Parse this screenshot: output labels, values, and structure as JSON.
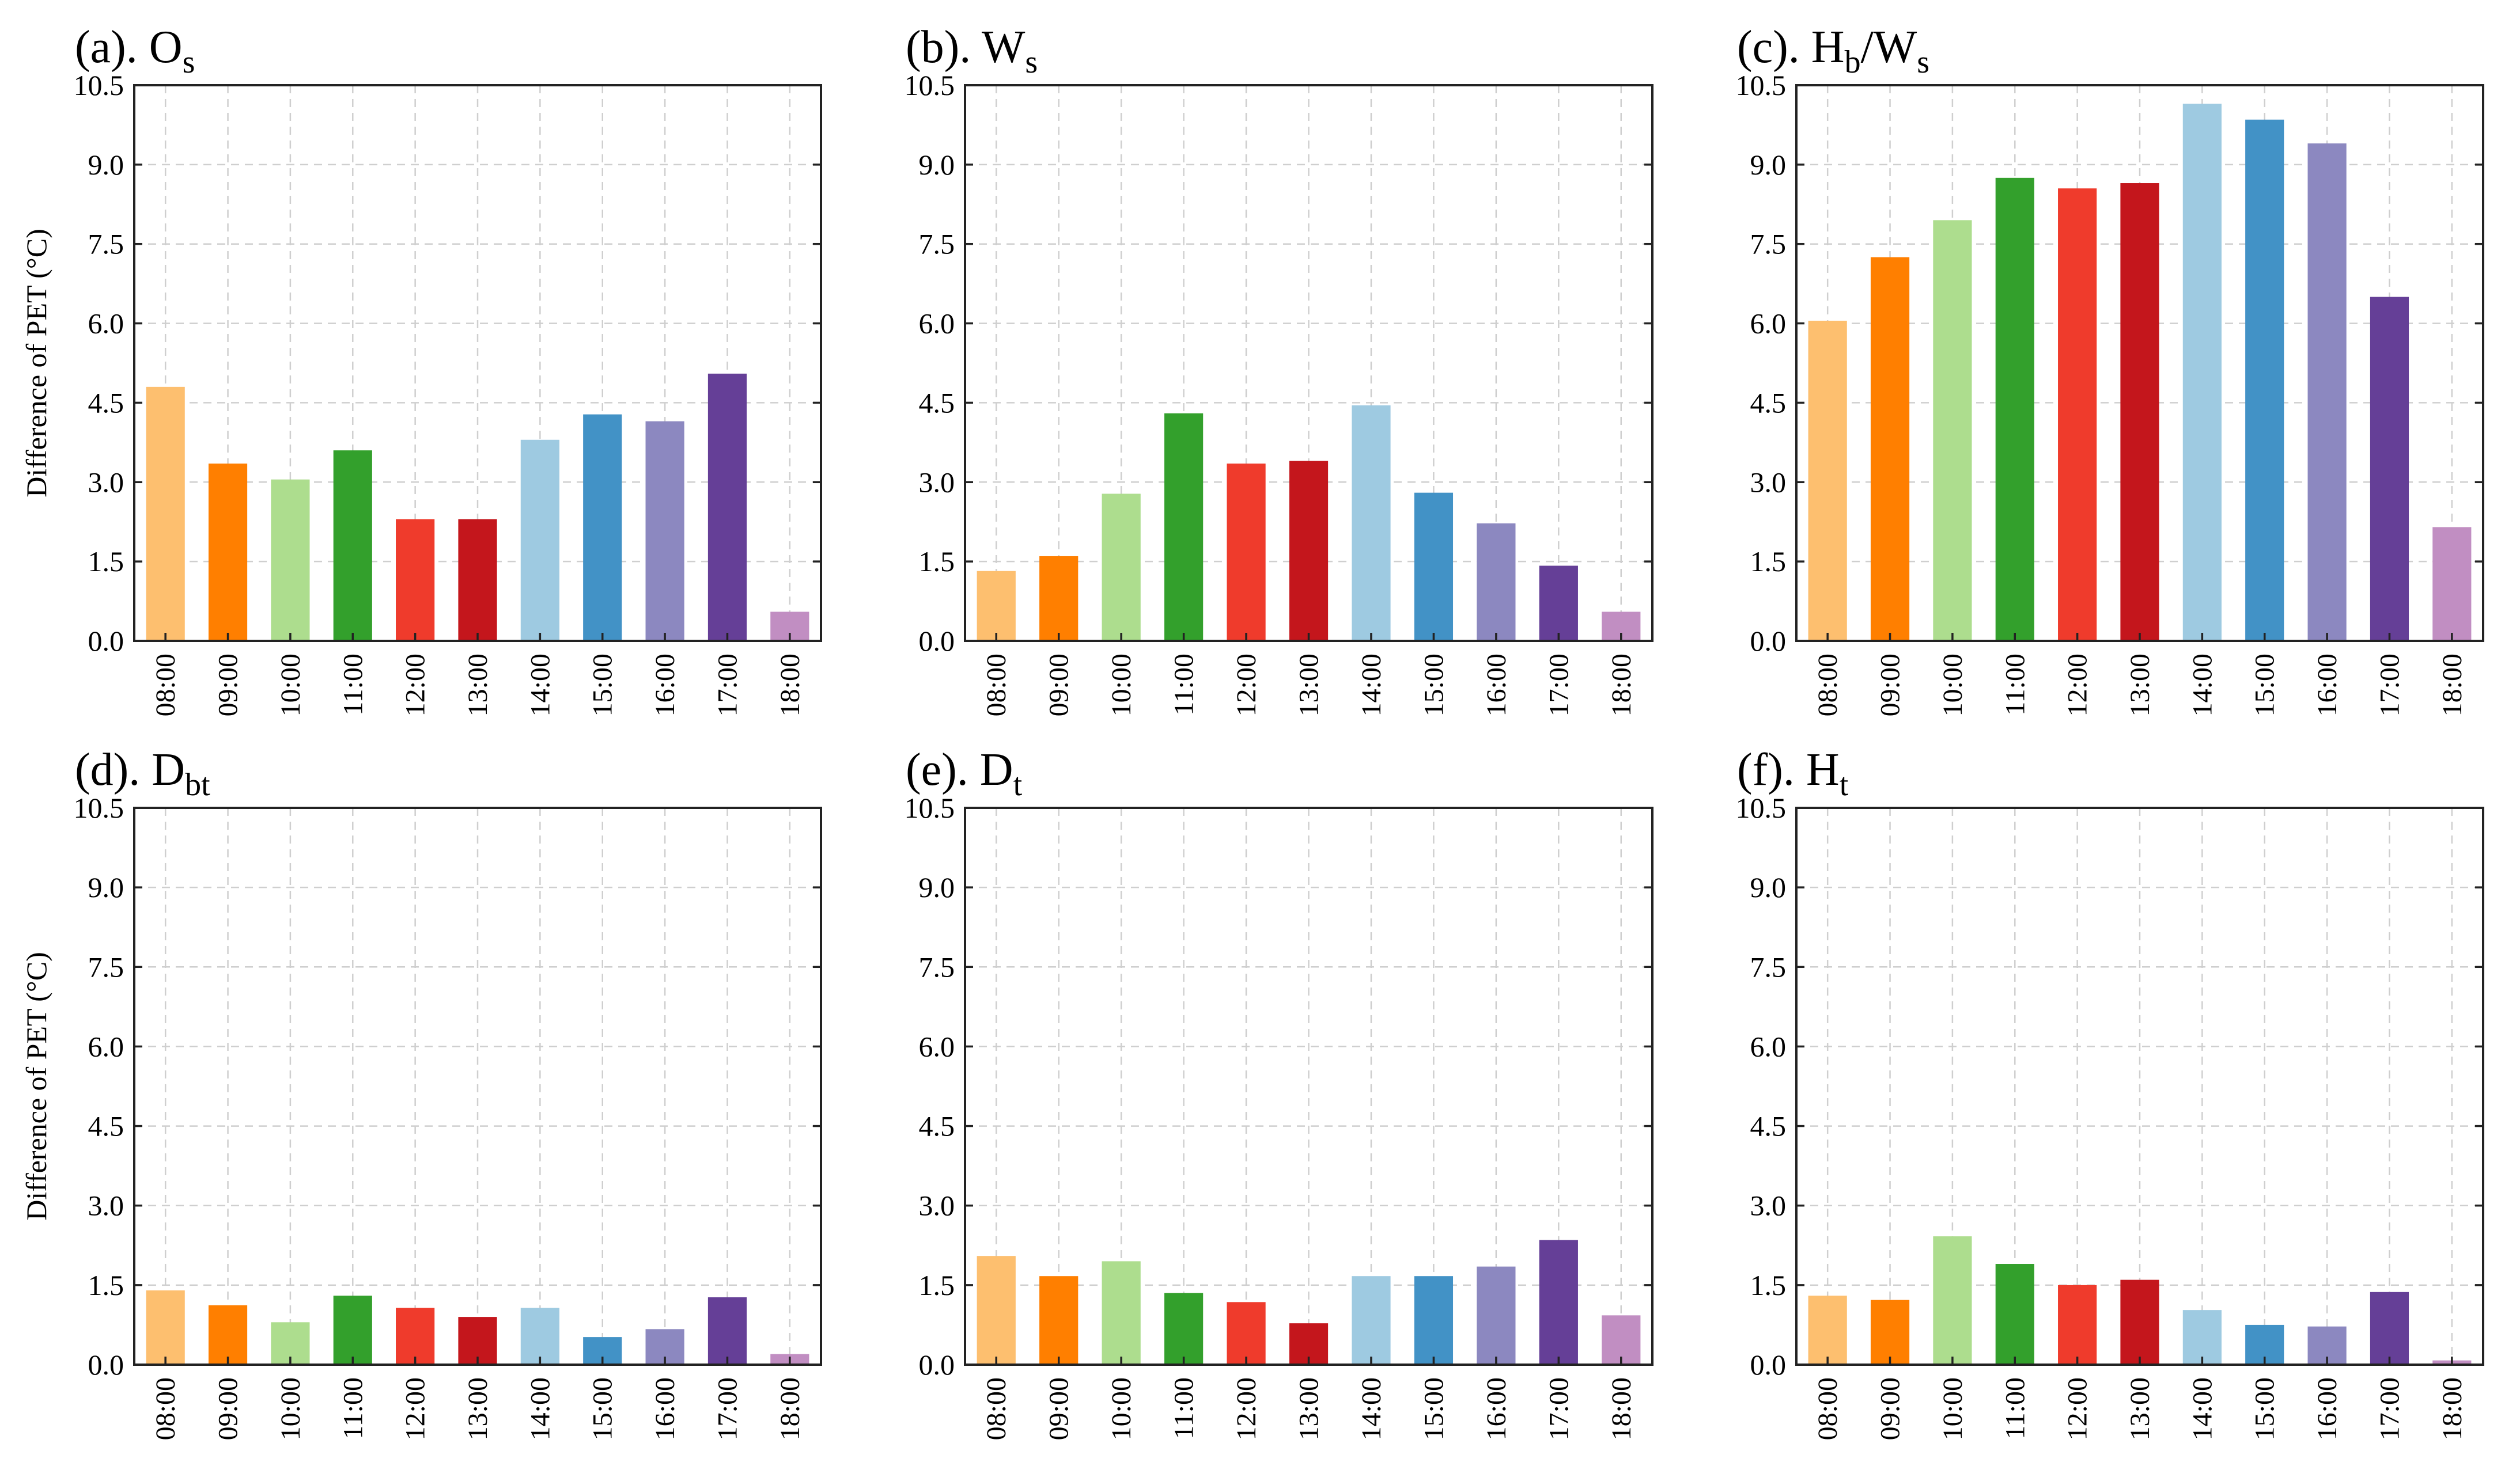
{
  "chart_data": [
    {
      "type": "bar",
      "title": "(a). Os",
      "title_main": "(a). O",
      "title_sub": "s",
      "ylabel": "Difference of PET (°C)",
      "xlabel": "",
      "ylim": [
        0,
        10.5
      ],
      "yticks": [
        "0.0",
        "1.5",
        "3.0",
        "4.5",
        "6.0",
        "7.5",
        "9.0",
        "10.5"
      ],
      "grid": true,
      "categories": [
        "08:00",
        "09:00",
        "10:00",
        "11:00",
        "12:00",
        "13:00",
        "14:00",
        "15:00",
        "16:00",
        "17:00",
        "18:00"
      ],
      "values": [
        4.8,
        3.35,
        3.05,
        3.6,
        2.3,
        2.3,
        3.8,
        4.28,
        4.15,
        5.05,
        0.55
      ]
    },
    {
      "type": "bar",
      "title": "(b). Ws",
      "title_main": "(b). W",
      "title_sub": "s",
      "ylabel": "",
      "xlabel": "",
      "ylim": [
        0,
        10.5
      ],
      "yticks": [
        "0.0",
        "1.5",
        "3.0",
        "4.5",
        "6.0",
        "7.5",
        "9.0",
        "10.5"
      ],
      "grid": true,
      "categories": [
        "08:00",
        "09:00",
        "10:00",
        "11:00",
        "12:00",
        "13:00",
        "14:00",
        "15:00",
        "16:00",
        "17:00",
        "18:00"
      ],
      "values": [
        1.32,
        1.6,
        2.78,
        4.3,
        3.35,
        3.4,
        4.45,
        2.8,
        2.22,
        1.42,
        0.55
      ]
    },
    {
      "type": "bar",
      "title": "(c). Hb/Ws",
      "title_main": "(c). H",
      "title_sub": "b",
      "title_mid": "/W",
      "title_sub2": "s",
      "ylabel": "",
      "xlabel": "",
      "ylim": [
        0,
        10.5
      ],
      "yticks": [
        "0.0",
        "1.5",
        "3.0",
        "4.5",
        "6.0",
        "7.5",
        "9.0",
        "10.5"
      ],
      "grid": true,
      "categories": [
        "08:00",
        "09:00",
        "10:00",
        "11:00",
        "12:00",
        "13:00",
        "14:00",
        "15:00",
        "16:00",
        "17:00",
        "18:00"
      ],
      "values": [
        6.05,
        7.25,
        7.95,
        8.75,
        8.55,
        8.65,
        10.15,
        9.85,
        9.4,
        6.5,
        2.15
      ]
    },
    {
      "type": "bar",
      "title": "(d). Dbt",
      "title_main": "(d). D",
      "title_sub": "bt",
      "ylabel": "Difference of PET (°C)",
      "xlabel": "",
      "ylim": [
        0,
        10.5
      ],
      "yticks": [
        "0.0",
        "1.5",
        "3.0",
        "4.5",
        "6.0",
        "7.5",
        "9.0",
        "10.5"
      ],
      "grid": true,
      "categories": [
        "08:00",
        "09:00",
        "10:00",
        "11:00",
        "12:00",
        "13:00",
        "14:00",
        "15:00",
        "16:00",
        "17:00",
        "18:00"
      ],
      "values": [
        1.4,
        1.12,
        0.8,
        1.3,
        1.07,
        0.9,
        1.07,
        0.52,
        0.67,
        1.27,
        0.2
      ]
    },
    {
      "type": "bar",
      "title": "(e). Dt",
      "title_main": "(e). D",
      "title_sub": "t",
      "ylabel": "",
      "xlabel": "",
      "ylim": [
        0,
        10.5
      ],
      "yticks": [
        "0.0",
        "1.5",
        "3.0",
        "4.5",
        "6.0",
        "7.5",
        "9.0",
        "10.5"
      ],
      "grid": true,
      "categories": [
        "08:00",
        "09:00",
        "10:00",
        "11:00",
        "12:00",
        "13:00",
        "14:00",
        "15:00",
        "16:00",
        "17:00",
        "18:00"
      ],
      "values": [
        2.05,
        1.67,
        1.95,
        1.35,
        1.18,
        0.78,
        1.67,
        1.67,
        1.85,
        2.35,
        0.93
      ]
    },
    {
      "type": "bar",
      "title": "(f). Ht",
      "title_main": "(f). H",
      "title_sub": "t",
      "ylabel": "",
      "xlabel": "",
      "ylim": [
        0,
        10.5
      ],
      "yticks": [
        "0.0",
        "1.5",
        "3.0",
        "4.5",
        "6.0",
        "7.5",
        "9.0",
        "10.5"
      ],
      "grid": true,
      "categories": [
        "08:00",
        "09:00",
        "10:00",
        "11:00",
        "12:00",
        "13:00",
        "14:00",
        "15:00",
        "16:00",
        "17:00",
        "18:00"
      ],
      "values": [
        1.3,
        1.22,
        2.42,
        1.9,
        1.5,
        1.6,
        1.03,
        0.75,
        0.72,
        1.37,
        0.08
      ]
    }
  ],
  "colors": [
    "#fdbf6f",
    "#ff7f00",
    "#addd8e",
    "#33a02c",
    "#ef3b2c",
    "#c4161c",
    "#9ecae1",
    "#4292c6",
    "#8c88c0",
    "#653f97",
    "#c18ec2"
  ]
}
